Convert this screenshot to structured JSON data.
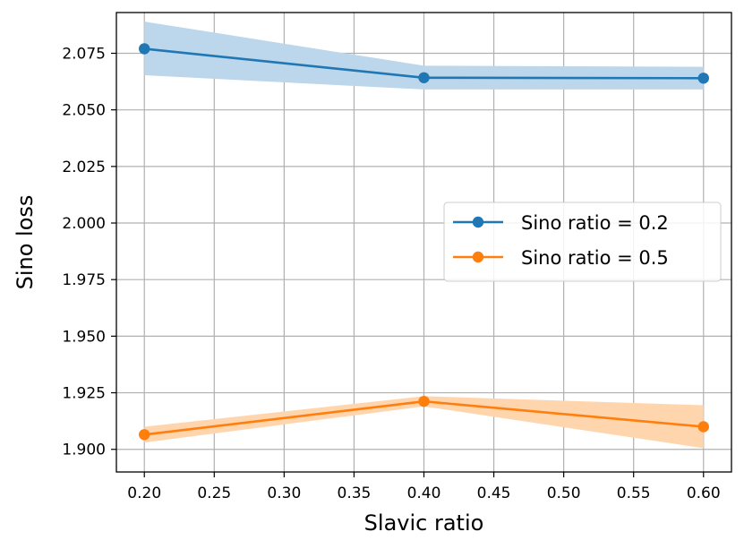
{
  "chart_data": {
    "type": "line",
    "title": "",
    "xlabel": "Slavic ratio",
    "ylabel": "Sino loss",
    "xlim": [
      0.18,
      0.62
    ],
    "ylim": [
      1.89,
      2.093
    ],
    "xticks": [
      0.2,
      0.25,
      0.3,
      0.35,
      0.4,
      0.45,
      0.5,
      0.55,
      0.6
    ],
    "xtick_labels": [
      "0.20",
      "0.25",
      "0.30",
      "0.35",
      "0.40",
      "0.45",
      "0.50",
      "0.55",
      "0.60"
    ],
    "yticks": [
      1.9,
      1.925,
      1.95,
      1.975,
      2.0,
      2.025,
      2.05,
      2.075
    ],
    "ytick_labels": [
      "1.900",
      "1.925",
      "1.950",
      "1.975",
      "2.000",
      "2.025",
      "2.050",
      "2.075"
    ],
    "grid": true,
    "legend_position": "center-right",
    "series": [
      {
        "name": "Sino ratio = 0.2",
        "color": "#1f77b4",
        "band_color": "#bcd6eb",
        "x": [
          0.2,
          0.4,
          0.6
        ],
        "y": [
          2.077,
          2.0642,
          2.064
        ],
        "lower": [
          2.0653,
          2.059,
          2.059
        ],
        "upper": [
          2.089,
          2.0695,
          2.069
        ]
      },
      {
        "name": "Sino ratio = 0.5",
        "color": "#ff7f0e",
        "band_color": "#ffd5ad",
        "x": [
          0.2,
          0.4,
          0.6
        ],
        "y": [
          1.9065,
          1.9212,
          1.91
        ],
        "lower": [
          1.903,
          1.919,
          1.9005
        ],
        "upper": [
          1.91,
          1.9235,
          1.9195
        ]
      }
    ]
  }
}
